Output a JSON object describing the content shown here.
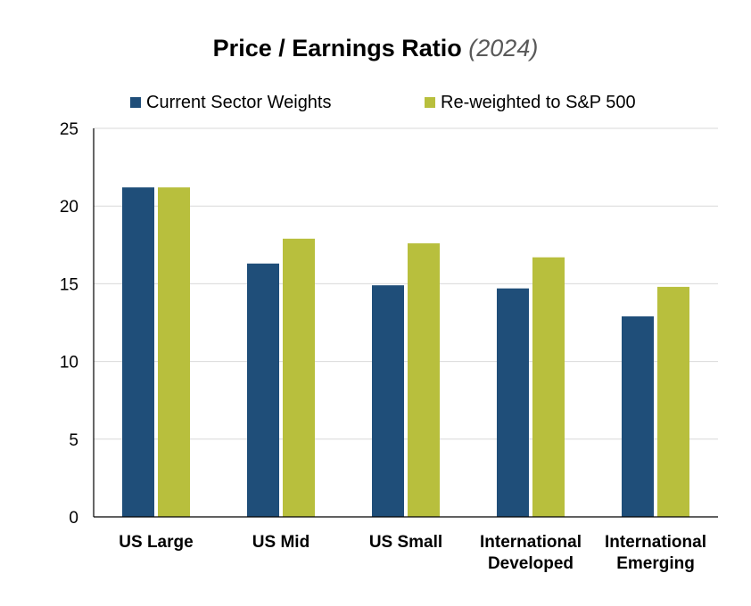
{
  "chart_data": {
    "type": "bar",
    "title": "Price / Earnings Ratio",
    "subtitle": "(2024)",
    "xlabel": "",
    "ylabel": "",
    "categories": [
      [
        "US Large"
      ],
      [
        "US Mid"
      ],
      [
        "US Small"
      ],
      [
        "International",
        "Developed"
      ],
      [
        "International",
        "Emerging"
      ]
    ],
    "series": [
      {
        "name": "Current Sector Weights",
        "color": "#1F4E79",
        "values": [
          21.2,
          16.3,
          14.9,
          14.7,
          12.9
        ]
      },
      {
        "name": "Re-weighted to S&P 500",
        "color": "#B8BF3D",
        "values": [
          21.2,
          17.9,
          17.6,
          16.7,
          14.8
        ]
      }
    ],
    "ylim": [
      0,
      25
    ],
    "yticks": [
      0,
      5,
      10,
      15,
      20,
      25
    ],
    "grid": true,
    "legend_position": "top"
  }
}
